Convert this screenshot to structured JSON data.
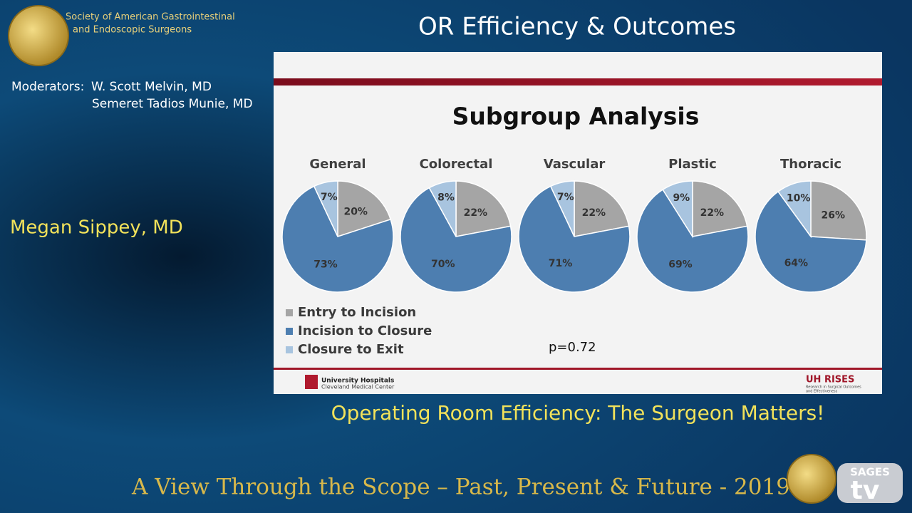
{
  "header": {
    "org_lines": [
      "Society of American Gastrointestinal",
      "and Endoscopic Surgeons"
    ],
    "title": "OR Efficiency & Outcomes"
  },
  "moderators": {
    "label": "Moderators:",
    "names": [
      "W. Scott Melvin, MD",
      "Semeret Tadios Munie, MD"
    ]
  },
  "speaker": "Megan Sippey, MD",
  "talk_title": "Operating Room Efficiency: The Surgeon Matters!",
  "footer": "A View Through the Scope – Past, Present & Future - 2019",
  "brand": {
    "sages": "SAGES",
    "tv": "tv"
  },
  "slide": {
    "title": "Subgroup Analysis",
    "legend": [
      "Entry to Incision",
      "Incision to Closure",
      "Closure to Exit"
    ],
    "p_value": "p=0.72",
    "logo_left": [
      "University Hospitals",
      "Cleveland Medical Center"
    ],
    "logo_right": [
      "UH RISES",
      "Research in Surgical Outcomes",
      "and Effectiveness"
    ]
  },
  "chart_data": [
    {
      "type": "pie",
      "title": "General",
      "values": [
        20,
        73,
        7
      ],
      "value_labels": [
        "20%",
        "73%",
        "7%"
      ],
      "colors": [
        "#a5a5a5",
        "#4d7eb0",
        "#a8c4df"
      ]
    },
    {
      "type": "pie",
      "title": "Colorectal",
      "values": [
        22,
        70,
        8
      ],
      "value_labels": [
        "22%",
        "70%",
        "8%"
      ],
      "colors": [
        "#a5a5a5",
        "#4d7eb0",
        "#a8c4df"
      ]
    },
    {
      "type": "pie",
      "title": "Vascular",
      "values": [
        22,
        71,
        7
      ],
      "value_labels": [
        "22%",
        "71%",
        "7%"
      ],
      "colors": [
        "#a5a5a5",
        "#4d7eb0",
        "#a8c4df"
      ]
    },
    {
      "type": "pie",
      "title": "Plastic",
      "values": [
        22,
        69,
        9
      ],
      "value_labels": [
        "22%",
        "69%",
        "9%"
      ],
      "colors": [
        "#a5a5a5",
        "#4d7eb0",
        "#a8c4df"
      ]
    },
    {
      "type": "pie",
      "title": "Thoracic",
      "values": [
        26,
        64,
        10
      ],
      "value_labels": [
        "26%",
        "64%",
        "10%"
      ],
      "colors": [
        "#a5a5a5",
        "#4d7eb0",
        "#a8c4df"
      ]
    }
  ]
}
